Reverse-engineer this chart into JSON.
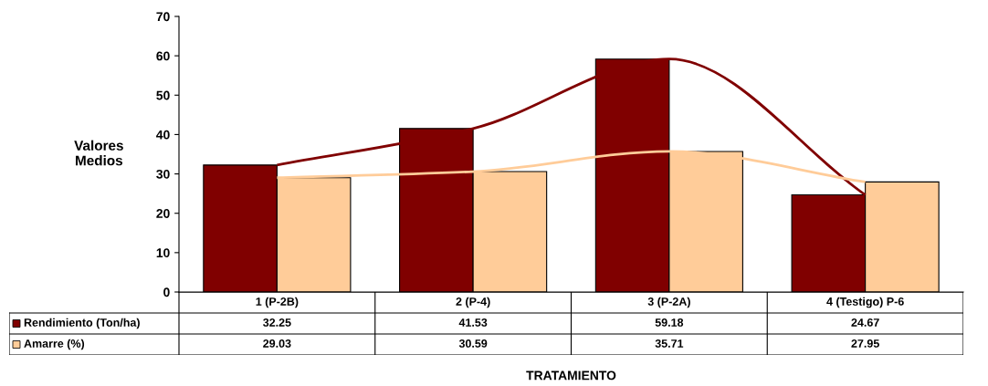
{
  "chart_data": {
    "type": "bar",
    "ylabel": "Valores\nMedios",
    "xlabel": "TRATAMIENTO",
    "categories": [
      "1 (P-2B)",
      "2 (P-4)",
      "3 (P-2A)",
      "4 (Testigo) P-6"
    ],
    "series": [
      {
        "name": "Rendimiento (Ton/ha)",
        "color": "#800000",
        "values": [
          32.25,
          41.53,
          59.18,
          24.67
        ],
        "value_labels": [
          "32.25",
          "41.53",
          "59.18",
          "24.67"
        ]
      },
      {
        "name": "Amarre (%)",
        "color": "#ffcc99",
        "values": [
          29.03,
          30.59,
          35.71,
          27.95
        ],
        "value_labels": [
          "29.03",
          "30.59",
          "35.71",
          "27.95"
        ]
      },
      {
        "type": "line",
        "color": "#800000",
        "values": [
          32.25,
          41.53,
          59.18,
          24.67
        ]
      },
      {
        "type": "line",
        "color": "#ffcc99",
        "values": [
          29.03,
          30.59,
          35.71,
          27.95
        ]
      }
    ],
    "ylim": [
      0,
      70
    ],
    "yticks": [
      0,
      10,
      20,
      30,
      40,
      50,
      60,
      70
    ],
    "grid": false,
    "legend": "bottom left",
    "line_style": "solid"
  }
}
